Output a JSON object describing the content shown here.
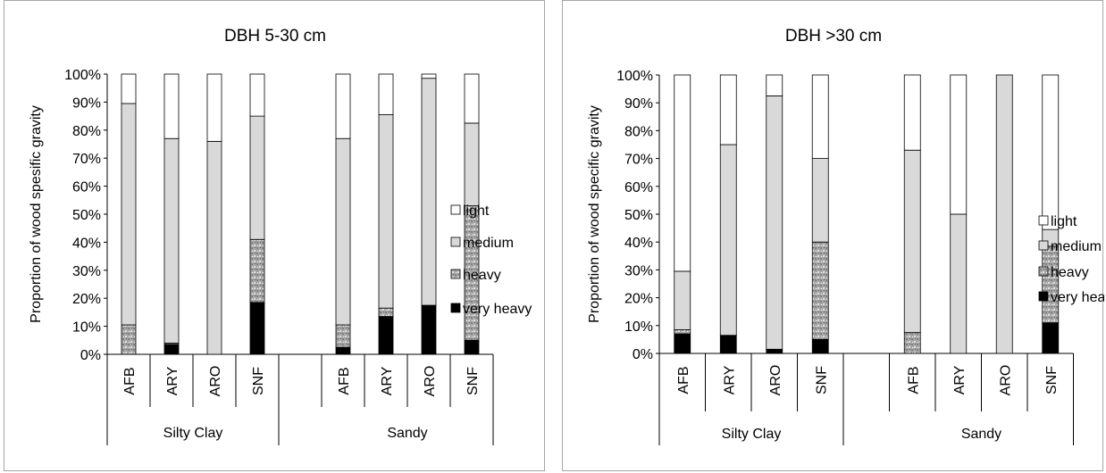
{
  "colors": {
    "light": "#ffffff",
    "medium": "#d9d9d9",
    "heavy": "#a6a6a6",
    "very_heavy": "#000000",
    "outline": "#000000",
    "frame": "#a6a6a6"
  },
  "chart_data": [
    {
      "type": "bar",
      "stacked": true,
      "title": "DBH 5-30 cm",
      "ylabel": "Proportion of wood spesific gravity",
      "ylim": [
        0,
        100
      ],
      "yticks": [
        "0%",
        "10%",
        "20%",
        "30%",
        "40%",
        "50%",
        "60%",
        "70%",
        "80%",
        "90%",
        "100%"
      ],
      "groups": [
        {
          "name": "Silty Clay",
          "categories": [
            "AFB",
            "ARY",
            "ARO",
            "SNF"
          ]
        },
        {
          "name": "Sandy",
          "categories": [
            "AFB",
            "ARY",
            "ARO",
            "SNF"
          ]
        }
      ],
      "series": [
        {
          "name": "very heavy",
          "values": [
            0,
            3.5,
            0,
            18.5,
            2.5,
            13.5,
            17.5,
            5
          ]
        },
        {
          "name": "heavy",
          "values": [
            10.5,
            0.5,
            0,
            22.5,
            8,
            3,
            0,
            48
          ]
        },
        {
          "name": "medium",
          "values": [
            79,
            73,
            76,
            44,
            66.5,
            69,
            81,
            29.5
          ]
        },
        {
          "name": "light",
          "values": [
            10.5,
            23,
            24,
            15,
            23,
            14.5,
            1.5,
            17.5
          ]
        }
      ],
      "legend": [
        "light",
        "medium",
        "heavy",
        "very heavy"
      ],
      "legend_position": "right",
      "grid": false
    },
    {
      "type": "bar",
      "stacked": true,
      "title": "DBH >30 cm",
      "ylabel": "Proportion of wood specific gravity",
      "ylim": [
        0,
        100
      ],
      "yticks": [
        "0%",
        "10%",
        "20%",
        "30%",
        "40%",
        "50%",
        "60%",
        "70%",
        "80%",
        "90%",
        "100%"
      ],
      "groups": [
        {
          "name": "Silty Clay",
          "categories": [
            "AFB",
            "ARY",
            "ARO",
            "SNF"
          ]
        },
        {
          "name": "Sandy",
          "categories": [
            "AFB",
            "ARY",
            "ARO",
            "SNF"
          ]
        }
      ],
      "series": [
        {
          "name": "very heavy",
          "values": [
            7,
            6.5,
            1.5,
            5,
            0,
            0,
            0,
            11
          ]
        },
        {
          "name": "heavy",
          "values": [
            1.5,
            0,
            0,
            35,
            7.5,
            0,
            0,
            27.5
          ]
        },
        {
          "name": "medium",
          "values": [
            21,
            68.5,
            91,
            30,
            65.5,
            50,
            100,
            6
          ]
        },
        {
          "name": "light",
          "values": [
            70.5,
            25,
            7.5,
            30,
            27,
            50,
            0,
            55.5
          ]
        }
      ],
      "legend": [
        "light",
        "medium",
        "heavy",
        "very heavy"
      ],
      "legend_position": "right",
      "grid": false
    }
  ]
}
